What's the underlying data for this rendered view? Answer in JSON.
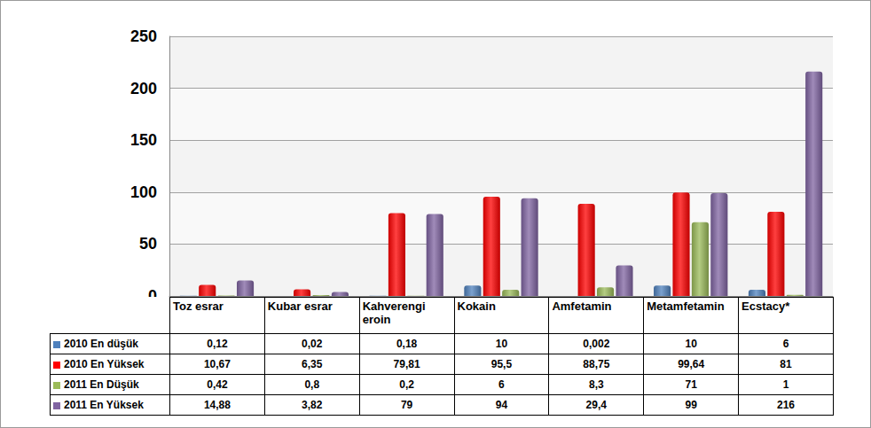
{
  "chart_data": {
    "type": "bar",
    "categories": [
      "Toz esrar",
      "Kubar esrar",
      "Kahverengi eroin",
      "Kokain",
      "Amfetamin",
      "Metamfetamin",
      "Ecstacy*"
    ],
    "series": [
      {
        "name": "2010 En düşük",
        "color": "#4f81bd",
        "values": [
          0.12,
          0.02,
          0.18,
          10,
          0.002,
          10,
          6
        ],
        "value_labels": [
          "0,12",
          "0,02",
          "0,18",
          "10",
          "0,002",
          "10",
          "6"
        ]
      },
      {
        "name": "2010 En Yüksek",
        "color": "#ff0000",
        "values": [
          10.67,
          6.35,
          79.81,
          95.5,
          88.75,
          99.64,
          81
        ],
        "value_labels": [
          "10,67",
          "6,35",
          "79,81",
          "95,5",
          "88,75",
          "99,64",
          "81"
        ]
      },
      {
        "name": "2011 En Düşük",
        "color": "#9bbb59",
        "values": [
          0.42,
          0.8,
          0.2,
          6,
          8.3,
          71,
          1
        ],
        "value_labels": [
          "0,42",
          "0,8",
          "0,2",
          "6",
          "8,3",
          "71",
          "1"
        ]
      },
      {
        "name": "2011 En Yüksek",
        "color": "#8064a2",
        "values": [
          14.88,
          3.82,
          79,
          94,
          29.4,
          99,
          216
        ],
        "value_labels": [
          "14,88",
          "3,82",
          "79",
          "94",
          "29,4",
          "99",
          "216"
        ]
      }
    ],
    "ylim": [
      0,
      250
    ],
    "yticks": [
      0,
      50,
      100,
      150,
      200,
      250
    ],
    "grid": true
  }
}
